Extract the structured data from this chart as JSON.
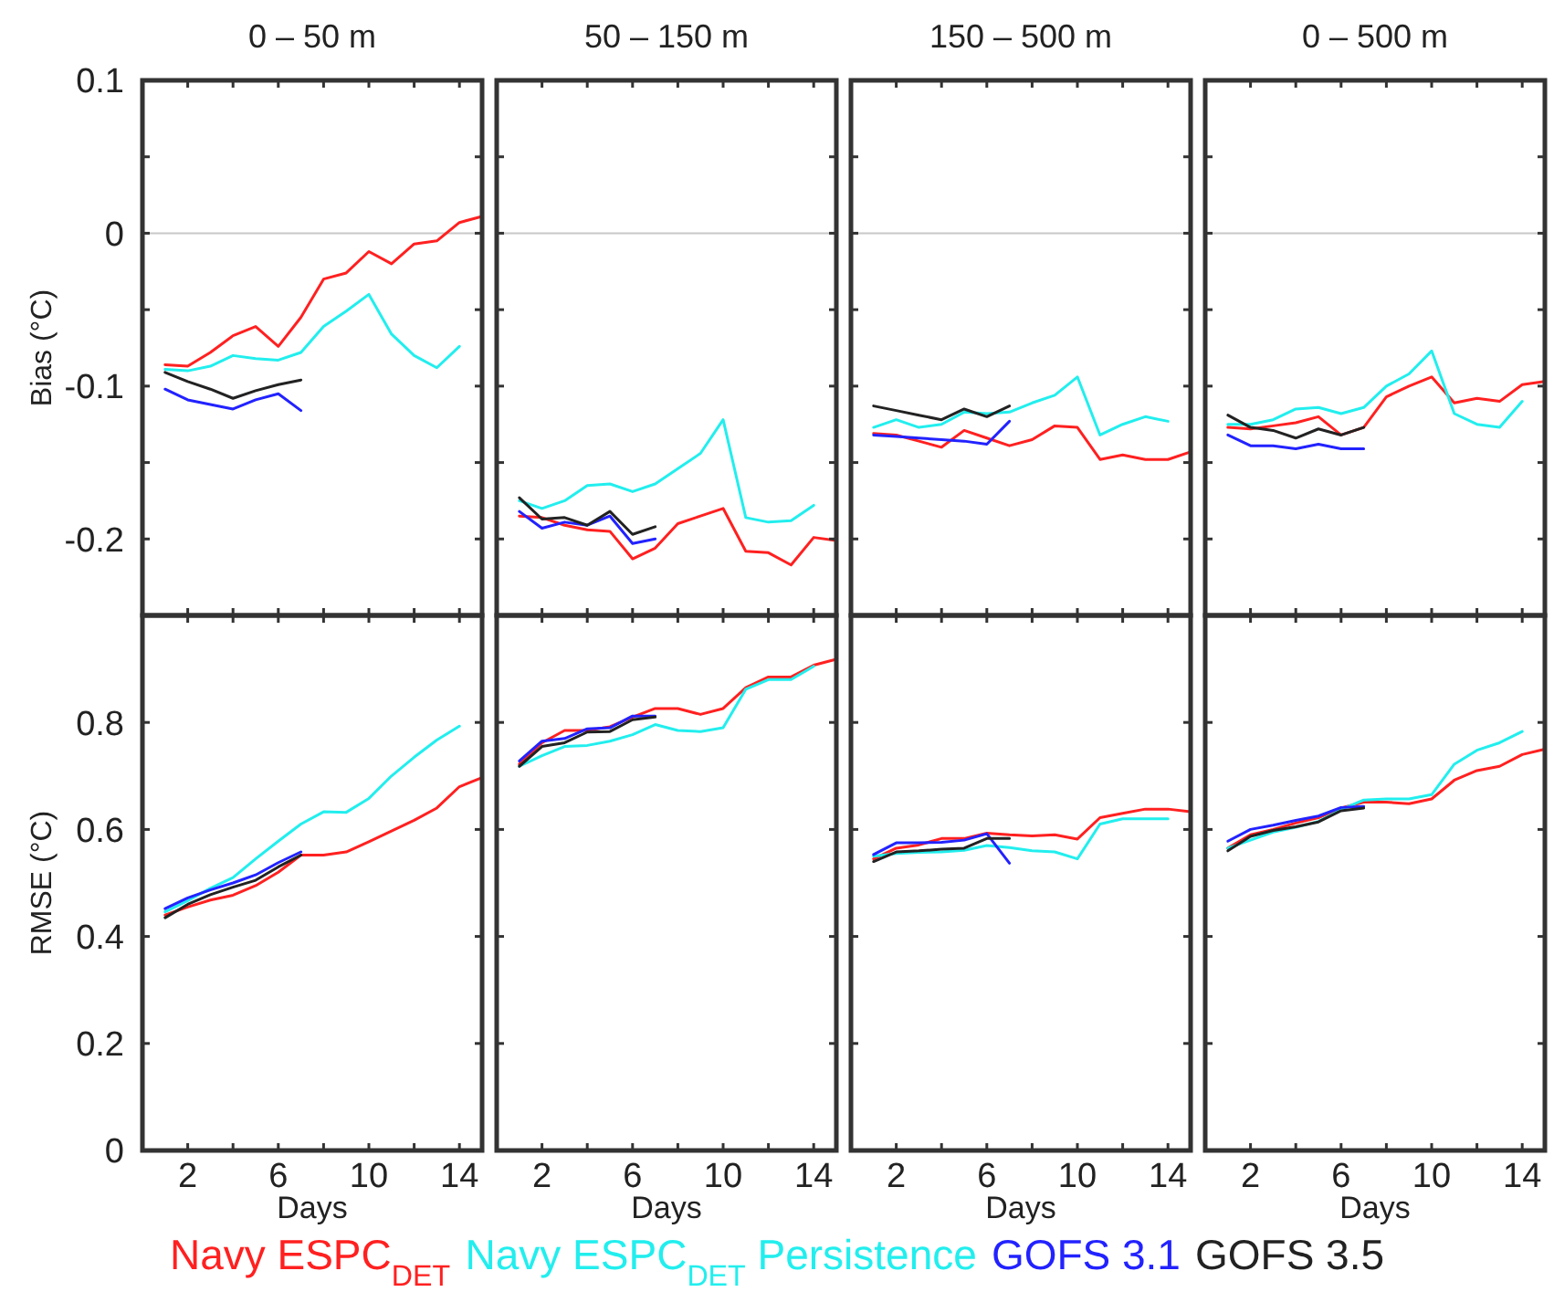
{
  "chart_data": [
    {
      "type": "line",
      "title": "0 – 50 m",
      "ylabel": "Bias (°C)",
      "x": [
        1,
        2,
        3,
        4,
        5,
        6,
        7,
        8,
        9,
        10,
        11,
        12,
        13,
        14,
        15
      ],
      "xlim": [
        0,
        15
      ],
      "ylim": [
        -0.25,
        0.1
      ],
      "xticks": [
        2,
        {
          "value": 4,
          "label": null
        },
        6,
        {
          "value": 8,
          "label": null
        },
        10,
        {
          "value": 12,
          "label": null
        },
        14
      ],
      "yticks": [
        -0.2,
        {
          "value": -0.15,
          "label": null
        },
        -0.1,
        {
          "value": -0.05,
          "label": null
        },
        0,
        {
          "value": 0.05,
          "label": null
        },
        0.1
      ],
      "tick_labels": "y",
      "ref_lines": [
        {
          "axis": "y",
          "value": 0,
          "color": "#c8c8c8"
        }
      ],
      "legend": "bottom",
      "series": [
        {
          "name": "Navy ESPC$_{DET}$",
          "color": "#ff2020",
          "values": [
            -0.086,
            -0.087,
            -0.078,
            -0.067,
            -0.061,
            -0.074,
            -0.055,
            -0.03,
            -0.026,
            -0.012,
            -0.02,
            -0.007,
            -0.005,
            0.007,
            0.011
          ]
        },
        {
          "name": "Navy ESPC$_{DET}$ Persistence",
          "color": "#22eeee",
          "values": [
            -0.089,
            -0.09,
            -0.087,
            -0.08,
            -0.082,
            -0.083,
            -0.078,
            -0.061,
            -0.051,
            -0.04,
            -0.066,
            -0.08,
            -0.088,
            -0.074,
            null
          ]
        },
        {
          "name": "GOFS 3.1",
          "color": "#2222ff",
          "values": [
            -0.102,
            -0.109,
            -0.112,
            -0.115,
            -0.109,
            -0.105,
            -0.116,
            null,
            null,
            null,
            null,
            null,
            null,
            null,
            null
          ]
        },
        {
          "name": "GOFS 3.5",
          "color": "#222222",
          "values": [
            -0.091,
            -0.097,
            -0.102,
            -0.108,
            -0.103,
            -0.099,
            -0.096,
            null,
            null,
            null,
            null,
            null,
            null,
            null,
            null
          ]
        }
      ]
    },
    {
      "type": "line",
      "title": "50 – 150 m",
      "x": [
        1,
        2,
        3,
        4,
        5,
        6,
        7,
        8,
        9,
        10,
        11,
        12,
        13,
        14,
        15
      ],
      "xlim": [
        0,
        15
      ],
      "ylim": [
        -0.25,
        0.1
      ],
      "xticks": [
        2,
        {
          "value": 4,
          "label": null
        },
        6,
        {
          "value": 8,
          "label": null
        },
        10,
        {
          "value": 12,
          "label": null
        },
        14
      ],
      "yticks": [
        -0.2,
        {
          "value": -0.15,
          "label": null
        },
        -0.1,
        {
          "value": -0.05,
          "label": null
        },
        0,
        {
          "value": 0.05,
          "label": null
        },
        0.1
      ],
      "tick_labels": false,
      "ref_lines": [
        {
          "axis": "y",
          "value": 0,
          "color": "#c8c8c8"
        }
      ],
      "series": [
        {
          "color": "#ff2020",
          "values": [
            -0.185,
            -0.186,
            -0.191,
            -0.194,
            -0.195,
            -0.213,
            -0.206,
            -0.19,
            -0.185,
            -0.18,
            -0.208,
            -0.209,
            -0.217,
            -0.199,
            -0.201
          ]
        },
        {
          "color": "#22eeee",
          "values": [
            -0.175,
            -0.18,
            -0.175,
            -0.165,
            -0.164,
            -0.169,
            -0.164,
            -0.154,
            -0.144,
            -0.122,
            -0.186,
            -0.189,
            -0.188,
            -0.178,
            null
          ]
        },
        {
          "color": "#2222ff",
          "values": [
            -0.182,
            -0.193,
            -0.189,
            -0.191,
            -0.185,
            -0.203,
            -0.2,
            null,
            null,
            null,
            null,
            null,
            null,
            null,
            null
          ]
        },
        {
          "color": "#222222",
          "values": [
            -0.173,
            -0.187,
            -0.186,
            -0.191,
            -0.182,
            -0.197,
            -0.192,
            null,
            null,
            null,
            null,
            null,
            null,
            null,
            null
          ]
        }
      ]
    },
    {
      "type": "line",
      "title": "150 – 500 m",
      "x": [
        1,
        2,
        3,
        4,
        5,
        6,
        7,
        8,
        9,
        10,
        11,
        12,
        13,
        14,
        15
      ],
      "xlim": [
        0,
        15
      ],
      "ylim": [
        -0.25,
        0.1
      ],
      "xticks": [
        2,
        {
          "value": 4,
          "label": null
        },
        6,
        {
          "value": 8,
          "label": null
        },
        10,
        {
          "value": 12,
          "label": null
        },
        14
      ],
      "yticks": [
        -0.2,
        {
          "value": -0.15,
          "label": null
        },
        -0.1,
        {
          "value": -0.05,
          "label": null
        },
        0,
        {
          "value": 0.05,
          "label": null
        },
        0.1
      ],
      "tick_labels": false,
      "ref_lines": [
        {
          "axis": "y",
          "value": 0,
          "color": "#c8c8c8"
        }
      ],
      "series": [
        {
          "color": "#ff2020",
          "values": [
            -0.131,
            -0.132,
            -0.136,
            -0.14,
            -0.129,
            -0.134,
            -0.139,
            -0.135,
            -0.126,
            -0.127,
            -0.148,
            -0.145,
            -0.148,
            -0.148,
            -0.143
          ]
        },
        {
          "color": "#22eeee",
          "values": [
            -0.127,
            -0.122,
            -0.127,
            -0.125,
            -0.117,
            -0.118,
            -0.117,
            -0.111,
            -0.106,
            -0.094,
            -0.132,
            -0.125,
            -0.12,
            -0.123,
            null
          ]
        },
        {
          "color": "#2222ff",
          "values": [
            -0.132,
            -0.133,
            -0.134,
            -0.135,
            -0.136,
            -0.138,
            -0.123,
            null,
            null,
            null,
            null,
            null,
            null,
            null,
            null
          ]
        },
        {
          "color": "#222222",
          "values": [
            -0.113,
            -0.116,
            -0.119,
            -0.122,
            -0.115,
            -0.12,
            -0.113,
            null,
            null,
            null,
            null,
            null,
            null,
            null,
            null
          ]
        }
      ]
    },
    {
      "type": "line",
      "title": "0 – 500 m",
      "x": [
        1,
        2,
        3,
        4,
        5,
        6,
        7,
        8,
        9,
        10,
        11,
        12,
        13,
        14,
        15
      ],
      "xlim": [
        0,
        15
      ],
      "ylim": [
        -0.25,
        0.1
      ],
      "xticks": [
        2,
        {
          "value": 4,
          "label": null
        },
        6,
        {
          "value": 8,
          "label": null
        },
        10,
        {
          "value": 12,
          "label": null
        },
        14
      ],
      "yticks": [
        -0.2,
        {
          "value": -0.15,
          "label": null
        },
        -0.1,
        {
          "value": -0.05,
          "label": null
        },
        0,
        {
          "value": 0.05,
          "label": null
        },
        0.1
      ],
      "tick_labels": false,
      "ref_lines": [
        {
          "axis": "y",
          "value": 0,
          "color": "#c8c8c8"
        }
      ],
      "series": [
        {
          "color": "#ff2020",
          "values": [
            -0.127,
            -0.128,
            -0.126,
            -0.124,
            -0.12,
            -0.132,
            -0.127,
            -0.107,
            -0.1,
            -0.094,
            -0.111,
            -0.108,
            -0.11,
            -0.099,
            -0.097
          ]
        },
        {
          "color": "#22eeee",
          "values": [
            -0.125,
            -0.125,
            -0.122,
            -0.115,
            -0.114,
            -0.118,
            -0.114,
            -0.1,
            -0.092,
            -0.077,
            -0.118,
            -0.125,
            -0.127,
            -0.11,
            null
          ]
        },
        {
          "color": "#2222ff",
          "values": [
            -0.132,
            -0.139,
            -0.139,
            -0.141,
            -0.138,
            -0.141,
            -0.141,
            null,
            null,
            null,
            null,
            null,
            null,
            null,
            null
          ]
        },
        {
          "color": "#222222",
          "values": [
            -0.119,
            -0.127,
            -0.129,
            -0.134,
            -0.128,
            -0.132,
            -0.127,
            null,
            null,
            null,
            null,
            null,
            null,
            null,
            null
          ]
        }
      ]
    },
    {
      "type": "line",
      "xlabel": "Days",
      "ylabel": "RMSE (°C)",
      "x": [
        1,
        2,
        3,
        4,
        5,
        6,
        7,
        8,
        9,
        10,
        11,
        12,
        13,
        14,
        15
      ],
      "xlim": [
        0,
        15
      ],
      "ylim": [
        0,
        1
      ],
      "xticks": [
        2,
        {
          "value": 4,
          "label": null
        },
        6,
        {
          "value": 8,
          "label": null
        },
        10,
        {
          "value": 12,
          "label": null
        },
        14
      ],
      "yticks": [
        0,
        0.2,
        0.4,
        0.6,
        0.8
      ],
      "series": [
        {
          "color": "#ff2020",
          "values": [
            0.44,
            0.455,
            0.468,
            0.477,
            0.495,
            0.52,
            0.552,
            0.552,
            0.558,
            0.577,
            0.597,
            0.617,
            0.64,
            0.68,
            0.697
          ]
        },
        {
          "color": "#22eeee",
          "values": [
            0.446,
            0.467,
            0.49,
            0.51,
            0.545,
            0.578,
            0.61,
            0.633,
            0.632,
            0.658,
            0.7,
            0.735,
            0.767,
            0.793,
            null
          ]
        },
        {
          "color": "#2222ff",
          "values": [
            0.452,
            0.472,
            0.487,
            0.5,
            0.515,
            0.538,
            0.558,
            null,
            null,
            null,
            null,
            null,
            null,
            null,
            null
          ]
        },
        {
          "color": "#222222",
          "values": [
            0.435,
            0.46,
            0.478,
            0.492,
            0.505,
            0.53,
            0.552,
            null,
            null,
            null,
            null,
            null,
            null,
            null,
            null
          ]
        }
      ]
    },
    {
      "type": "line",
      "xlabel": "Days",
      "x": [
        1,
        2,
        3,
        4,
        5,
        6,
        7,
        8,
        9,
        10,
        11,
        12,
        13,
        14,
        15
      ],
      "xlim": [
        0,
        15
      ],
      "ylim": [
        0,
        1
      ],
      "xticks": [
        2,
        {
          "value": 4,
          "label": null
        },
        6,
        {
          "value": 8,
          "label": null
        },
        10,
        {
          "value": 12,
          "label": null
        },
        14
      ],
      "yticks": [
        0,
        0.2,
        0.4,
        0.6,
        0.8
      ],
      "tick_labels": "x",
      "series": [
        {
          "color": "#ff2020",
          "values": [
            0.722,
            0.762,
            0.785,
            0.785,
            0.792,
            0.81,
            0.826,
            0.826,
            0.815,
            0.826,
            0.865,
            0.885,
            0.885,
            0.907,
            0.918
          ]
        },
        {
          "color": "#22eeee",
          "values": [
            0.718,
            0.738,
            0.755,
            0.757,
            0.765,
            0.777,
            0.796,
            0.785,
            0.783,
            0.79,
            0.862,
            0.88,
            0.88,
            0.905,
            null
          ]
        },
        {
          "color": "#2222ff",
          "values": [
            0.728,
            0.765,
            0.77,
            0.788,
            0.79,
            0.812,
            0.812,
            null,
            null,
            null,
            null,
            null,
            null,
            null,
            null
          ]
        },
        {
          "color": "#222222",
          "values": [
            0.718,
            0.755,
            0.762,
            0.782,
            0.783,
            0.805,
            0.81,
            null,
            null,
            null,
            null,
            null,
            null,
            null,
            null
          ]
        }
      ]
    },
    {
      "type": "line",
      "xlabel": "Days",
      "x": [
        1,
        2,
        3,
        4,
        5,
        6,
        7,
        8,
        9,
        10,
        11,
        12,
        13,
        14,
        15
      ],
      "xlim": [
        0,
        15
      ],
      "ylim": [
        0,
        1
      ],
      "xticks": [
        2,
        {
          "value": 4,
          "label": null
        },
        6,
        {
          "value": 8,
          "label": null
        },
        10,
        {
          "value": 12,
          "label": null
        },
        14
      ],
      "yticks": [
        0,
        0.2,
        0.4,
        0.6,
        0.8
      ],
      "tick_labels": "x",
      "series": [
        {
          "color": "#ff2020",
          "values": [
            0.545,
            0.565,
            0.571,
            0.583,
            0.583,
            0.593,
            0.59,
            0.588,
            0.59,
            0.582,
            0.622,
            0.63,
            0.638,
            0.638,
            0.633
          ]
        },
        {
          "color": "#22eeee",
          "values": [
            0.55,
            0.555,
            0.557,
            0.558,
            0.561,
            0.57,
            0.566,
            0.56,
            0.558,
            0.545,
            0.61,
            0.62,
            0.62,
            0.62,
            null
          ]
        },
        {
          "color": "#2222ff",
          "values": [
            0.553,
            0.575,
            0.575,
            0.576,
            0.58,
            0.592,
            0.537,
            null,
            null,
            null,
            null,
            null,
            null,
            null,
            null
          ]
        },
        {
          "color": "#222222",
          "values": [
            0.54,
            0.558,
            0.56,
            0.563,
            0.565,
            0.583,
            0.583,
            null,
            null,
            null,
            null,
            null,
            null,
            null,
            null
          ]
        }
      ]
    },
    {
      "type": "line",
      "xlabel": "Days",
      "x": [
        1,
        2,
        3,
        4,
        5,
        6,
        7,
        8,
        9,
        10,
        11,
        12,
        13,
        14,
        15
      ],
      "xlim": [
        0,
        15
      ],
      "ylim": [
        0,
        1
      ],
      "xticks": [
        2,
        {
          "value": 4,
          "label": null
        },
        6,
        {
          "value": 8,
          "label": null
        },
        10,
        {
          "value": 12,
          "label": null
        },
        14
      ],
      "yticks": [
        0,
        0.2,
        0.4,
        0.6,
        0.8
      ],
      "tick_labels": "x",
      "series": [
        {
          "color": "#ff2020",
          "values": [
            0.565,
            0.59,
            0.6,
            0.612,
            0.622,
            0.64,
            0.651,
            0.651,
            0.648,
            0.657,
            0.692,
            0.71,
            0.718,
            0.74,
            0.75
          ]
        },
        {
          "color": "#22eeee",
          "values": [
            0.565,
            0.58,
            0.595,
            0.604,
            0.615,
            0.637,
            0.655,
            0.657,
            0.657,
            0.665,
            0.722,
            0.748,
            0.762,
            0.783,
            null
          ]
        },
        {
          "color": "#2222ff",
          "values": [
            0.578,
            0.6,
            0.608,
            0.617,
            0.625,
            0.641,
            0.643,
            null,
            null,
            null,
            null,
            null,
            null,
            null,
            null
          ]
        },
        {
          "color": "#222222",
          "values": [
            0.56,
            0.587,
            0.598,
            0.605,
            0.614,
            0.635,
            0.64,
            null,
            null,
            null,
            null,
            null,
            null,
            null,
            null
          ]
        }
      ]
    }
  ]
}
